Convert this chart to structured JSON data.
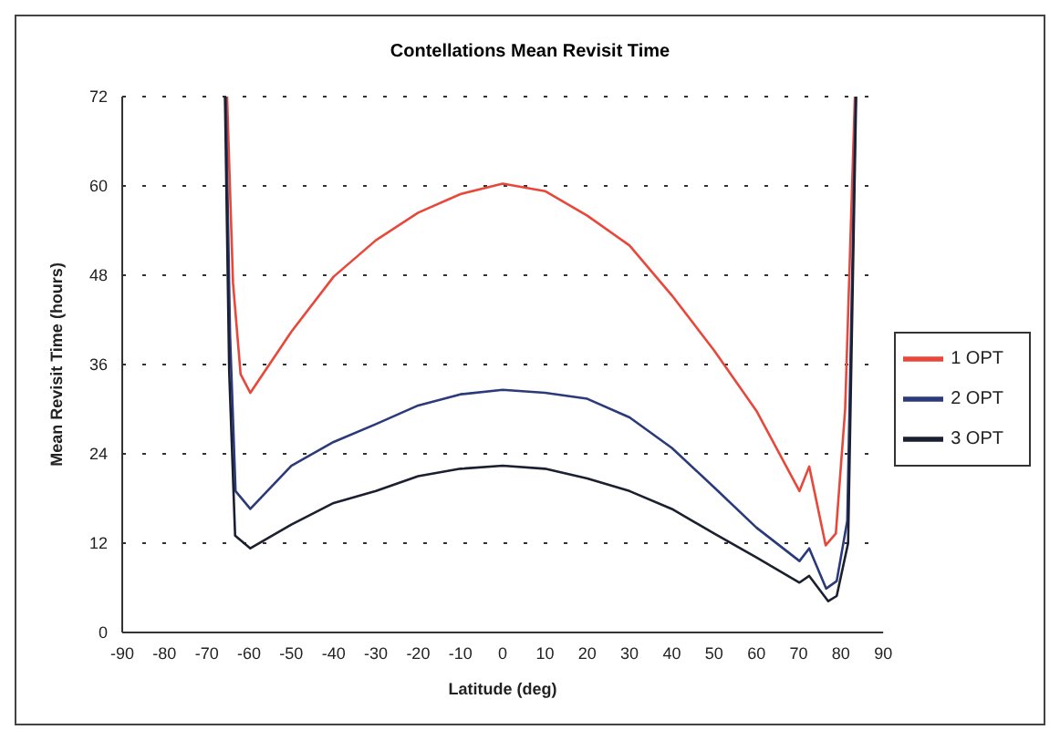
{
  "chart_data": {
    "type": "line",
    "title": "Contellations Mean Revisit Time",
    "xlabel": "Latitude (deg)",
    "ylabel": "Mean Revisit Time (hours)",
    "xlim": [
      -90,
      90
    ],
    "xticks": [
      -90,
      -80,
      -70,
      -60,
      -50,
      -40,
      -30,
      -20,
      -10,
      0,
      10,
      20,
      30,
      40,
      50,
      60,
      70,
      80,
      90
    ],
    "ylim": [
      0,
      72
    ],
    "yticks": [
      0,
      12,
      24,
      36,
      48,
      60,
      72
    ],
    "grid": "y",
    "legend": "right",
    "marker": "none",
    "line_style": "solid",
    "series": [
      {
        "name": "1 OPT",
        "color": "#e8483a",
        "x": [
          -65.2,
          -63.8,
          -62,
          -59.7,
          -50,
          -40,
          -30,
          -20,
          -10,
          0,
          10,
          20,
          30,
          40,
          50,
          60,
          70.2,
          72.5,
          76.4,
          78.8,
          81,
          83.3
        ],
        "values": [
          72,
          47,
          34.7,
          32.2,
          40.4,
          47.8,
          52.7,
          56.4,
          58.9,
          60.3,
          59.3,
          56,
          52,
          45.3,
          37.9,
          29.8,
          19,
          22.3,
          11.7,
          13.3,
          30,
          72
        ]
      },
      {
        "name": "2 OPT",
        "color": "#2b3a7a",
        "x": [
          -65.5,
          -64.5,
          -63.2,
          -59.7,
          -50,
          -40,
          -30,
          -20,
          -10,
          0,
          10,
          20,
          30,
          40,
          50,
          60,
          70.2,
          72.5,
          76.5,
          79,
          81.5,
          83.5
        ],
        "values": [
          72,
          40,
          19,
          16.6,
          22.4,
          25.6,
          28,
          30.5,
          32,
          32.6,
          32.2,
          31.4,
          28.9,
          24.8,
          19.5,
          14.1,
          9.6,
          11.3,
          5.9,
          6.9,
          15,
          72
        ]
      },
      {
        "name": "3 OPT",
        "color": "#1a2030",
        "x": [
          -65.7,
          -64.7,
          -63.3,
          -59.7,
          -50,
          -40,
          -30,
          -20,
          -10,
          0,
          10,
          20,
          30,
          40,
          50,
          60,
          70.2,
          72.5,
          77,
          79,
          81.7,
          83.6
        ],
        "values": [
          72,
          35,
          13,
          11.3,
          14.5,
          17.4,
          19,
          21,
          22,
          22.4,
          22,
          20.7,
          19,
          16.6,
          13.3,
          10.1,
          6.7,
          7.6,
          4.2,
          4.9,
          12,
          72
        ]
      }
    ]
  }
}
